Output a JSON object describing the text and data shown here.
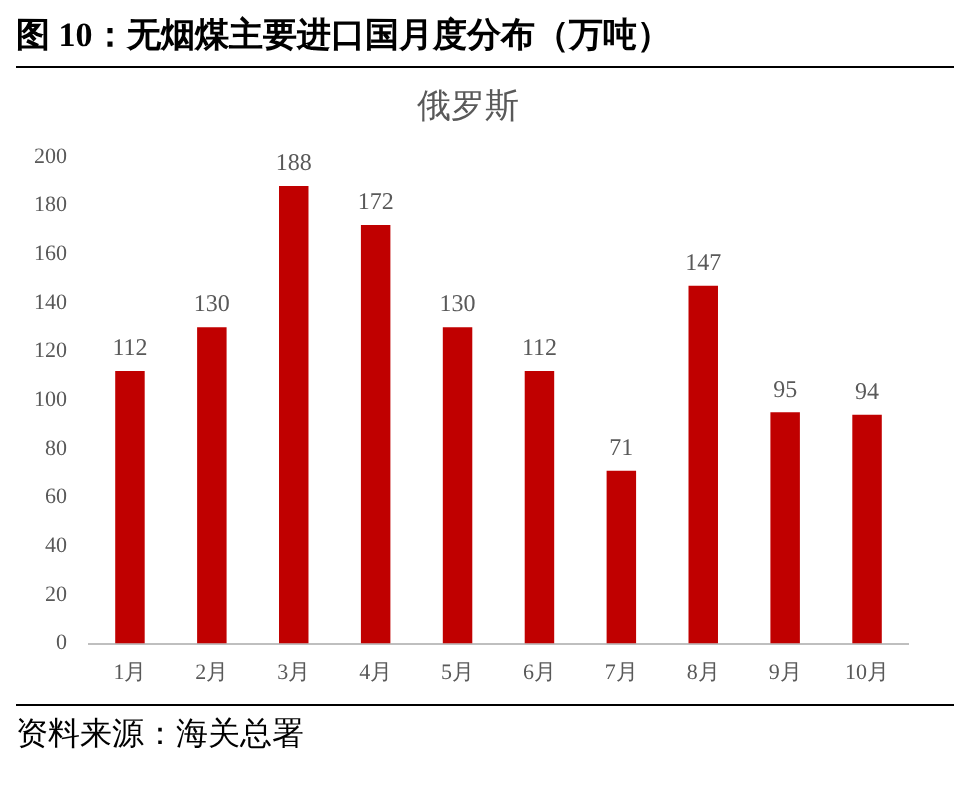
{
  "chart_data": {
    "type": "bar",
    "title": "图 10：无烟煤主要进口国月度分布（万吨）",
    "subtitle": "俄罗斯",
    "categories": [
      "1月",
      "2月",
      "3月",
      "4月",
      "5月",
      "6月",
      "7月",
      "8月",
      "9月",
      "10月"
    ],
    "values": [
      112,
      130,
      188,
      172,
      130,
      112,
      71,
      147,
      95,
      94
    ],
    "color": "#c00000",
    "ylim": [
      0,
      200
    ],
    "yticks": [
      0,
      20,
      40,
      60,
      80,
      100,
      120,
      140,
      160,
      180,
      200
    ],
    "data_labels": true,
    "grid": false,
    "legend": false,
    "annotations": [
      "资料来源：海关总署"
    ]
  }
}
